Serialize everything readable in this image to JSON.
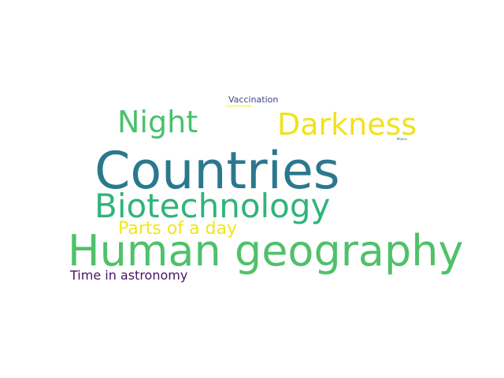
{
  "words": [
    {
      "text": "Countries",
      "color": "#2a788e"
    },
    {
      "text": "Human geography",
      "color": "#4fc16a"
    },
    {
      "text": "Biotechnology",
      "color": "#2fb47c"
    },
    {
      "text": "Darkness",
      "color": "#f1e21b"
    },
    {
      "text": "Night",
      "color": "#4ac16d"
    },
    {
      "text": "Parts of a day",
      "color": "#f2e51d"
    },
    {
      "text": "Time in astronomy",
      "color": "#471365"
    },
    {
      "text": "Vaccination",
      "color": "#414487"
    },
    {
      "text": "Commemoration",
      "color": "#f1e21b"
    },
    {
      "text": "Moons",
      "color": "#31688e"
    }
  ]
}
